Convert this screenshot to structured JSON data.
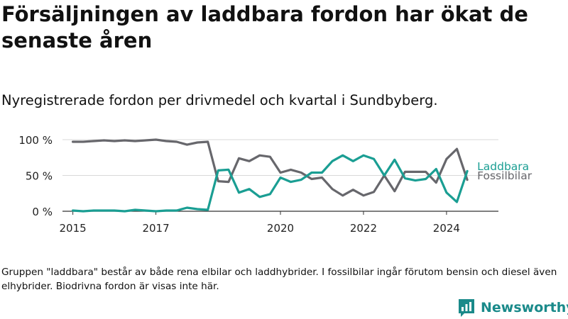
{
  "title": "Försäljningen av laddbara fordon har ökat de senaste åren",
  "subtitle": "Nyregistrerade fordon per drivmedel och kvartal i Sundbyberg.",
  "footnote": "Gruppen \"laddbara\" består av både rena elbilar och laddhybrider. I fossilbilar ingår förutom bensin och diesel även elhybrider. Biodrivna fordon är visas inte här.",
  "brand": {
    "name": "Newsworthy",
    "icon": "bar-chart-icon",
    "color": "#1a8a8a"
  },
  "chart_data": {
    "type": "line",
    "title": "Försäljningen av laddbara fordon har ökat de senaste åren",
    "xlabel": "",
    "ylabel": "",
    "x_start": 2015.0,
    "x_step": 0.25,
    "xlim": [
      2014.75,
      2025.25
    ],
    "ylim": [
      0,
      100
    ],
    "yticks": [
      {
        "value": 0,
        "label": "0 %"
      },
      {
        "value": 50,
        "label": "50 %"
      },
      {
        "value": 100,
        "label": "100 %"
      }
    ],
    "xticks": [
      {
        "value": 2015,
        "label": "2015"
      },
      {
        "value": 2017,
        "label": "2017"
      },
      {
        "value": 2020,
        "label": "2020"
      },
      {
        "value": 2022,
        "label": "2022"
      },
      {
        "value": 2024,
        "label": "2024"
      }
    ],
    "grid": true,
    "legend": "end-of-line labels",
    "series": [
      {
        "name": "Laddbara",
        "color": "#1a9e93",
        "values": [
          1,
          0,
          1,
          1,
          1,
          0,
          2,
          1,
          0,
          1,
          1,
          5,
          3,
          2,
          57,
          58,
          26,
          31,
          20,
          24,
          47,
          41,
          44,
          54,
          54,
          70,
          78,
          70,
          78,
          73,
          50,
          72,
          46,
          43,
          45,
          59,
          26,
          13,
          56
        ]
      },
      {
        "name": "Fossilbilar",
        "color": "#67676c",
        "values": [
          97,
          97,
          98,
          99,
          98,
          99,
          98,
          99,
          100,
          98,
          97,
          93,
          96,
          97,
          42,
          41,
          74,
          70,
          78,
          76,
          54,
          58,
          54,
          45,
          47,
          31,
          22,
          30,
          22,
          27,
          50,
          28,
          55,
          55,
          55,
          40,
          73,
          87,
          44
        ]
      }
    ]
  }
}
